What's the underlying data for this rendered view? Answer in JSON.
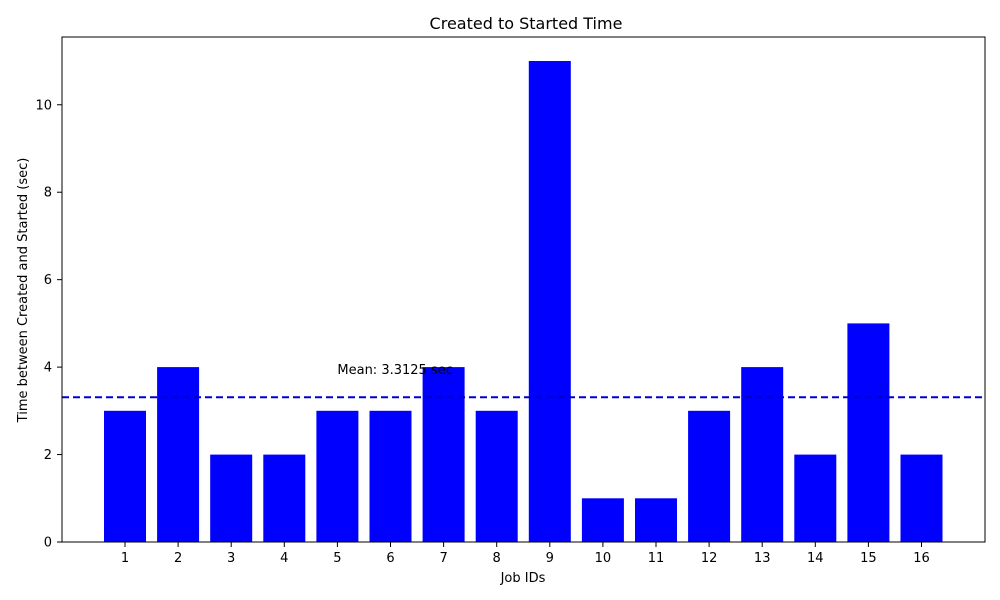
{
  "chart_data": {
    "type": "bar",
    "title": "Created to Started Time",
    "xlabel": "Job IDs",
    "ylabel": "Time between Created and Started (sec)",
    "categories": [
      "1",
      "2",
      "3",
      "4",
      "5",
      "6",
      "7",
      "8",
      "9",
      "10",
      "11",
      "12",
      "13",
      "14",
      "15",
      "16"
    ],
    "values": [
      3,
      4,
      2,
      2,
      3,
      3,
      4,
      3,
      11,
      1,
      1,
      3,
      4,
      2,
      5,
      2
    ],
    "ylim": [
      0,
      11.55
    ],
    "yticks": [
      0,
      2,
      4,
      6,
      8,
      10
    ],
    "grid": false,
    "bar_color": "#0000ff",
    "mean": {
      "value": 3.3125,
      "label": "Mean: 3.3125 sec",
      "color": "#0000cc",
      "style": "dashed"
    }
  }
}
